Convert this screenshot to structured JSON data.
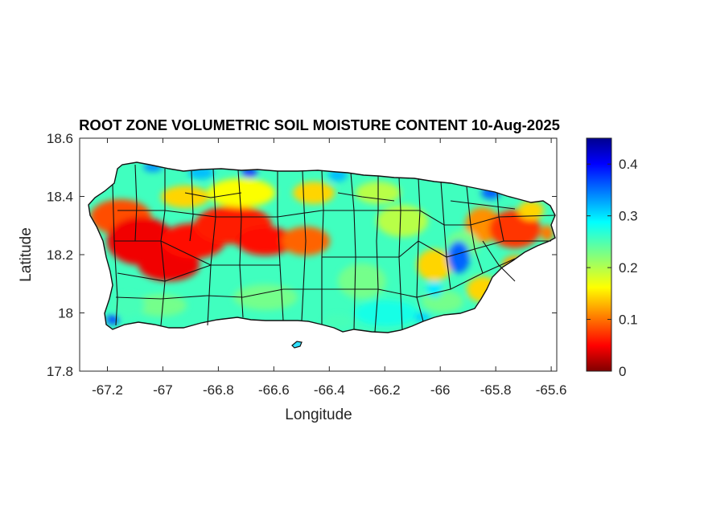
{
  "chart_data": {
    "type": "heatmap",
    "title": "ROOT ZONE VOLUMETRIC SOIL MOISTURE CONTENT 10-Aug-2025",
    "xlabel": "Longitude",
    "ylabel": "Latitude",
    "xlim": [
      -67.3,
      -65.58
    ],
    "ylim": [
      17.8,
      18.6
    ],
    "xticks": [
      "-67.2",
      "-67",
      "-66.8",
      "-66.6",
      "-66.4",
      "-66.2",
      "-66",
      "-65.8",
      "-65.6"
    ],
    "xtick_values": [
      -67.2,
      -67.0,
      -66.8,
      -66.6,
      -66.4,
      -66.2,
      -66.0,
      -65.8,
      -65.6
    ],
    "yticks": [
      "17.8",
      "18",
      "18.2",
      "18.4",
      "18.6"
    ],
    "ytick_values": [
      17.8,
      18.0,
      18.2,
      18.4,
      18.6
    ],
    "colorbar": {
      "colormap": "jet",
      "range": [
        0,
        0.45
      ],
      "ticks": [
        "0",
        "0.1",
        "0.2",
        "0.3",
        "0.4"
      ],
      "tick_values": [
        0,
        0.1,
        0.2,
        0.3,
        0.4
      ]
    },
    "overlay": "municipality boundaries",
    "grid": false
  }
}
